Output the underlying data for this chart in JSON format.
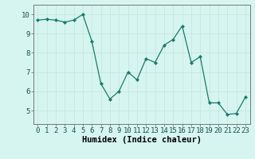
{
  "x": [
    0,
    1,
    2,
    3,
    4,
    5,
    6,
    7,
    8,
    9,
    10,
    11,
    12,
    13,
    14,
    15,
    16,
    17,
    18,
    19,
    20,
    21,
    22,
    23
  ],
  "y": [
    9.7,
    9.75,
    9.7,
    9.6,
    9.7,
    10.0,
    8.6,
    6.4,
    5.6,
    6.0,
    7.0,
    6.6,
    7.7,
    7.5,
    8.4,
    8.7,
    9.4,
    7.5,
    7.8,
    5.4,
    5.4,
    4.8,
    4.85,
    5.7
  ],
  "line_color": "#1a7a6a",
  "marker": "D",
  "marker_size": 2.0,
  "bg_color": "#d6f5f0",
  "grid_color": "#c8e8e0",
  "xlabel": "Humidex (Indice chaleur)",
  "xlim": [
    -0.5,
    23.5
  ],
  "ylim": [
    4.3,
    10.5
  ],
  "yticks": [
    5,
    6,
    7,
    8,
    9,
    10
  ],
  "xticks": [
    0,
    1,
    2,
    3,
    4,
    5,
    6,
    7,
    8,
    9,
    10,
    11,
    12,
    13,
    14,
    15,
    16,
    17,
    18,
    19,
    20,
    21,
    22,
    23
  ],
  "label_fontsize": 7.5,
  "tick_fontsize": 6.5
}
